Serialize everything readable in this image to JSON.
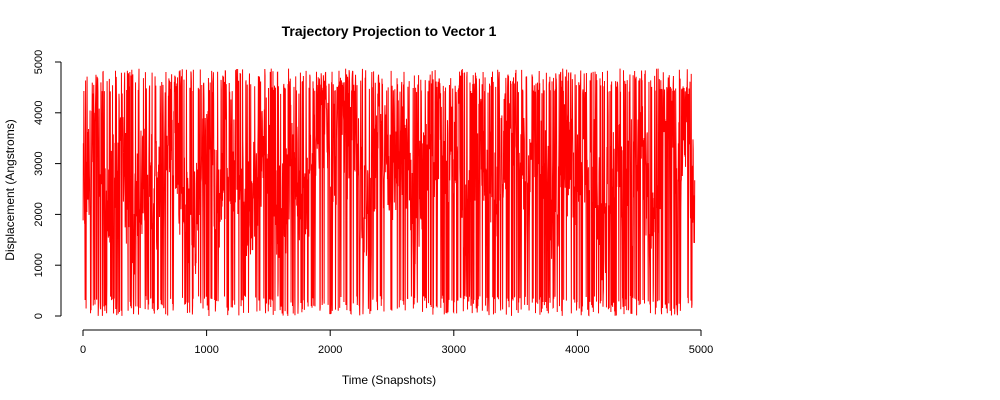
{
  "chart_data": {
    "type": "line",
    "title": "Trajectory Projection to Vector 1",
    "xlabel": "Time (Snapshots)",
    "ylabel": "Displacement (Angstroms)",
    "xlim": [
      0,
      5000
    ],
    "ylim": [
      0,
      5000
    ],
    "xticks": [
      0,
      1000,
      2000,
      3000,
      4000,
      5000
    ],
    "yticks": [
      0,
      1000,
      2000,
      3000,
      4000,
      5000
    ],
    "xtick_labels": [
      "0",
      "1000",
      "2000",
      "3000",
      "4000",
      "5000"
    ],
    "ytick_labels": [
      "0",
      "1000",
      "2000",
      "3000",
      "4000",
      "5000"
    ],
    "grid": false,
    "legend": "none",
    "color": "#ff0000",
    "series_summary": {
      "n_points": 4950,
      "x_start": 1,
      "x_end": 4950,
      "y_min": 0,
      "y_max": 4870
    },
    "x": [
      0,
      100,
      200,
      300,
      400,
      500,
      600,
      700,
      800,
      900,
      1000,
      1100,
      1200,
      1300,
      1400,
      1500,
      1600,
      1700,
      1800,
      1900,
      2000,
      2100,
      2200,
      2300,
      2400,
      2500,
      2600,
      2700,
      2800,
      2900,
      3000,
      3100,
      3200,
      3300,
      3400,
      3500,
      3600,
      3700,
      3800,
      3900,
      4000,
      4100,
      4200,
      4300,
      4400,
      4500,
      4600,
      4700,
      4800,
      4900,
      4950
    ],
    "y": [
      2000,
      4700,
      1100,
      4200,
      300,
      3600,
      1800,
      4800,
      2300,
      600,
      4500,
      1500,
      4300,
      900,
      2700,
      4600,
      500,
      3900,
      1200,
      4850,
      4100,
      3400,
      4700,
      600,
      4400,
      2900,
      4200,
      1000,
      4800,
      3700,
      4600,
      800,
      4300,
      1500,
      3900,
      4700,
      2500,
      4500,
      800,
      3800,
      2300,
      4400,
      300,
      4100,
      2200,
      4600,
      700,
      3500,
      4800,
      3800,
      2000
    ]
  }
}
